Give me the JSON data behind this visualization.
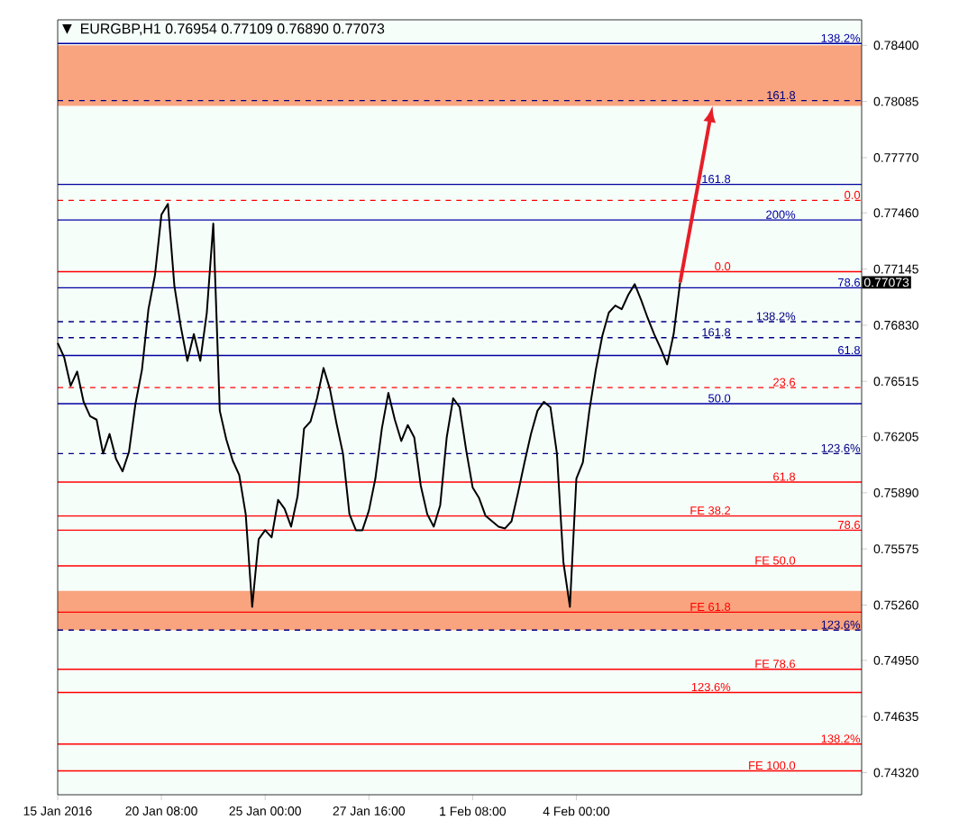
{
  "chart_data": {
    "type": "line",
    "title": "EURGBP,H1  0.76954 0.77109 0.76890 0.77073",
    "categories": [
      "15 Jan 2016",
      null,
      null,
      null,
      null,
      null,
      null,
      null,
      null,
      null,
      null,
      null,
      null,
      null,
      null,
      null,
      "20 Jan 08:00",
      null,
      null,
      null,
      null,
      null,
      null,
      null,
      null,
      null,
      null,
      null,
      null,
      null,
      null,
      null,
      "25 Jan 00:00",
      null,
      null,
      null,
      null,
      null,
      null,
      null,
      null,
      null,
      null,
      null,
      null,
      null,
      null,
      null,
      "27 Jan 16:00",
      null,
      null,
      null,
      null,
      null,
      null,
      null,
      null,
      null,
      null,
      null,
      null,
      null,
      null,
      null,
      "1 Feb 08:00",
      null,
      null,
      null,
      null,
      null,
      null,
      null,
      null,
      null,
      null,
      null,
      null,
      null,
      null,
      null,
      "4 Feb 00:00",
      null,
      null,
      null,
      null,
      null,
      null,
      null,
      null,
      null,
      null,
      null,
      null,
      null,
      null,
      null,
      null,
      null,
      null,
      null,
      null,
      null,
      null,
      null,
      null,
      null,
      null,
      null,
      null,
      null,
      null,
      null,
      null,
      null,
      null,
      null,
      null,
      null,
      null,
      null,
      null,
      null,
      null,
      null,
      null
    ],
    "series": [
      {
        "color": "#000000",
        "values": [
          0.7673,
          0.7665,
          0.7649,
          0.7657,
          0.764,
          0.7632,
          0.763,
          0.7611,
          0.7622,
          0.7608,
          0.7601,
          0.7612,
          0.7639,
          0.7658,
          0.7692,
          0.7711,
          0.7745,
          0.7751,
          0.7705,
          0.7682,
          0.7663,
          0.7678,
          0.7663,
          0.769,
          0.774,
          0.7635,
          0.7619,
          0.7607,
          0.7599,
          0.7577,
          0.7525,
          0.7563,
          0.7568,
          0.7564,
          0.7585,
          0.758,
          0.757,
          0.7587,
          0.7625,
          0.7629,
          0.7642,
          0.7659,
          0.7647,
          0.7628,
          0.7611,
          0.7577,
          0.7568,
          0.7568,
          0.7579,
          0.7597,
          0.7625,
          0.7645,
          0.763,
          0.7618,
          0.7627,
          0.762,
          0.7593,
          0.7577,
          0.757,
          0.7582,
          0.762,
          0.7642,
          0.7637,
          0.7613,
          0.7592,
          0.7586,
          0.7576,
          0.7573,
          0.757,
          0.7569,
          0.7573,
          0.7589,
          0.7606,
          0.7622,
          0.7635,
          0.764,
          0.7637,
          0.7611,
          0.755,
          0.7525,
          0.7597,
          0.7606,
          0.7635,
          0.7658,
          0.7677,
          0.769,
          0.7694,
          0.7692,
          0.77,
          0.7706,
          0.7697,
          0.7687,
          0.7678,
          0.767,
          0.7661,
          0.7678,
          0.7707,
          null,
          null,
          null,
          null,
          null,
          null,
          null,
          null,
          null,
          null,
          null,
          null,
          null,
          null,
          null,
          null,
          null,
          null,
          null,
          null,
          null,
          null,
          null,
          null,
          null,
          null,
          null,
          null
        ]
      }
    ],
    "ylim": [
      0.74196,
      0.78543
    ],
    "yticks": [
      {
        "value": 0.784,
        "label": "0.78400"
      },
      {
        "value": 0.78085,
        "label": "0.78085"
      },
      {
        "value": 0.7777,
        "label": "0.77770"
      },
      {
        "value": 0.7746,
        "label": "0.77460"
      },
      {
        "value": 0.77145,
        "label": "0.77145"
      },
      {
        "value": 0.7683,
        "label": "0.76830"
      },
      {
        "value": 0.76515,
        "label": "0.76515"
      },
      {
        "value": 0.76205,
        "label": "0.76205"
      },
      {
        "value": 0.7589,
        "label": "0.75890"
      },
      {
        "value": 0.75575,
        "label": "0.75575"
      },
      {
        "value": 0.7526,
        "label": "0.75260"
      },
      {
        "value": 0.7495,
        "label": "0.74950"
      },
      {
        "value": 0.74635,
        "label": "0.74635"
      },
      {
        "value": 0.7432,
        "label": "0.74320"
      }
    ],
    "bands": [
      {
        "axis": "y",
        "from": 0.7806,
        "to": 0.784,
        "color": "#f9a47e"
      },
      {
        "axis": "y",
        "from": 0.7512,
        "to": 0.7534,
        "color": "#f9a47e"
      }
    ],
    "ref_lines": [
      {
        "axis": "y",
        "value": 0.7841,
        "color": "#0000a0",
        "line_style": "solid"
      },
      {
        "axis": "y",
        "value": 0.7809,
        "color": "#000080",
        "line_style": "dashed"
      },
      {
        "axis": "y",
        "value": 0.7762,
        "color": "#0000a0",
        "line_style": "solid"
      },
      {
        "axis": "y",
        "value": 0.7753,
        "color": "#ff0000",
        "line_style": "dashed"
      },
      {
        "axis": "y",
        "value": 0.7742,
        "color": "#0000a0",
        "line_style": "solid"
      },
      {
        "axis": "y",
        "value": 0.7713,
        "color": "#ff0000",
        "line_style": "solid"
      },
      {
        "axis": "y",
        "value": 0.7704,
        "color": "#0000a0",
        "line_style": "solid"
      },
      {
        "axis": "y",
        "value": 0.7685,
        "color": "#000080",
        "line_style": "dashed"
      },
      {
        "axis": "y",
        "value": 0.7676,
        "color": "#000080",
        "line_style": "dashed"
      },
      {
        "axis": "y",
        "value": 0.7666,
        "color": "#0000a0",
        "line_style": "solid"
      },
      {
        "axis": "y",
        "value": 0.7648,
        "color": "#ff0000",
        "line_style": "dashed"
      },
      {
        "axis": "y",
        "value": 0.7639,
        "color": "#0000a0",
        "line_style": "solid"
      },
      {
        "axis": "y",
        "value": 0.7611,
        "color": "#000080",
        "line_style": "dashed"
      },
      {
        "axis": "y",
        "value": 0.7595,
        "color": "#ff0000",
        "line_style": "solid"
      },
      {
        "axis": "y",
        "value": 0.7576,
        "color": "#ff0000",
        "line_style": "solid"
      },
      {
        "axis": "y",
        "value": 0.7568,
        "color": "#ff0000",
        "line_style": "solid"
      },
      {
        "axis": "y",
        "value": 0.7548,
        "color": "#ff0000",
        "line_style": "solid"
      },
      {
        "axis": "y",
        "value": 0.7522,
        "color": "#ff0000",
        "line_style": "solid"
      },
      {
        "axis": "y",
        "value": 0.7512,
        "color": "#000080",
        "line_style": "dashed"
      },
      {
        "axis": "y",
        "value": 0.749,
        "color": "#ff0000",
        "line_style": "solid"
      },
      {
        "axis": "y",
        "value": 0.7477,
        "color": "#ff0000",
        "line_style": "solid"
      },
      {
        "axis": "y",
        "value": 0.7448,
        "color": "#ff0000",
        "line_style": "solid"
      },
      {
        "axis": "y",
        "value": 0.7433,
        "color": "#ff0000",
        "line_style": "solid"
      }
    ],
    "annotations": [
      "▼",
      "0.77073",
      {
        "text": "138.2%",
        "y": 0.7841
      },
      {
        "text": "161.8",
        "y": 0.7809
      },
      {
        "text": "161.8",
        "y": 0.7762
      },
      {
        "text": "0.0",
        "y": 0.7753
      },
      {
        "text": "200%",
        "y": 0.7742
      },
      {
        "text": "0.0",
        "y": 0.7713
      },
      {
        "text": "78.6",
        "y": 0.7704
      },
      {
        "text": "138.2%",
        "y": 0.7685
      },
      {
        "text": "161.8",
        "y": 0.7676
      },
      {
        "text": "61.8",
        "y": 0.7666
      },
      {
        "text": "23.6",
        "y": 0.7648
      },
      {
        "text": "50.0",
        "y": 0.7639
      },
      {
        "text": "123.6%",
        "y": 0.7611
      },
      {
        "text": "61.8",
        "y": 0.7595
      },
      {
        "text": "FE 38.2",
        "y": 0.7576
      },
      {
        "text": "78.6",
        "y": 0.7568
      },
      {
        "text": "FE 50.0",
        "y": 0.7548
      },
      {
        "text": "FE 61.8",
        "y": 0.7522
      },
      {
        "text": "123.6%",
        "y": 0.7512
      },
      {
        "text": "FE 78.6",
        "y": 0.749
      },
      {
        "text": "123.6%",
        "y": 0.7477
      },
      {
        "text": "138.2%",
        "y": 0.7448
      },
      {
        "text": "FE 100.0",
        "y": 0.7433
      }
    ],
    "grid": false
  }
}
